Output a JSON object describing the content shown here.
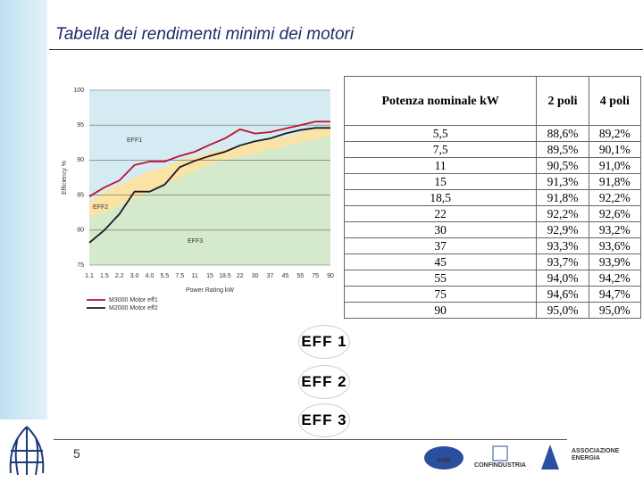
{
  "header": {
    "title": "Tabella dei rendimenti minimi dei motori"
  },
  "chart_data": {
    "type": "line",
    "categories": [
      "1.1",
      "1.5",
      "2.2",
      "3.0",
      "4.0",
      "5.5",
      "7.5",
      "11",
      "15",
      "18.5",
      "22",
      "30",
      "37",
      "45",
      "55",
      "75",
      "90"
    ],
    "ylabel": "Efficiency %",
    "xlabel": "Power Rating kW",
    "ylim": [
      75,
      100
    ],
    "yticks": [
      75,
      80,
      85,
      90,
      95,
      100
    ],
    "grid": true,
    "bands": [
      {
        "label": "EFF1",
        "color": "#d4ebf4"
      },
      {
        "label": "EFF2",
        "color": "#fbe3a6",
        "values": [
          84,
          85.5,
          86.5,
          87.5,
          88.5,
          89,
          90,
          90.5,
          91.2,
          91.6,
          92,
          92.6,
          93,
          93.3,
          94,
          94.5,
          95
        ]
      },
      {
        "label": "EFF3",
        "color": "#d4eacb",
        "values": [
          82,
          82.5,
          83.5,
          84.5,
          85.5,
          86.5,
          87.5,
          88.5,
          89.5,
          90,
          90.5,
          91,
          91.5,
          92,
          92.5,
          93,
          93.5
        ]
      }
    ],
    "series": [
      {
        "name": "M3000 Motor eff1",
        "color": "#c0102a",
        "values": [
          84.8,
          86.1,
          87.1,
          89.3,
          89.8,
          89.8,
          90.6,
          91.2,
          92.2,
          93.1,
          94.4,
          93.8,
          94.0,
          94.5,
          95.0,
          95.5,
          95.5
        ]
      },
      {
        "name": "M2000 Motor eff2",
        "color": "#1a1a2e",
        "values": [
          78.2,
          80.0,
          82.3,
          85.5,
          85.5,
          86.5,
          89.0,
          89.9,
          90.6,
          91.2,
          92.1,
          92.7,
          93.1,
          93.8,
          94.3,
          94.6,
          94.6
        ]
      }
    ]
  },
  "table": {
    "header": [
      "Potenza nominale kW",
      "2 poli",
      "4 poli"
    ],
    "rows": [
      [
        "5,5",
        "88,6%",
        "89,2%"
      ],
      [
        "7,5",
        "89,5%",
        "90,1%"
      ],
      [
        "11",
        "90,5%",
        "91,0%"
      ],
      [
        "15",
        "91,3%",
        "91,8%"
      ],
      [
        "18,5",
        "91,8%",
        "92,2%"
      ],
      [
        "22",
        "92,2%",
        "92,6%"
      ],
      [
        "30",
        "92,9%",
        "93,2%"
      ],
      [
        "37",
        "93,3%",
        "93,6%"
      ],
      [
        "45",
        "93,7%",
        "93,9%"
      ],
      [
        "55",
        "94,0%",
        "94,2%"
      ],
      [
        "75",
        "94,6%",
        "94,7%"
      ],
      [
        "90",
        "95,0%",
        "95,0%"
      ]
    ]
  },
  "badges": [
    "EFF 1",
    "EFF 2",
    "EFF 3"
  ],
  "footer": {
    "page": "5",
    "logos": [
      "ANIE",
      "CONFINDUSTRIA",
      "ASSOCIAZIONE",
      "ENERGIA"
    ]
  }
}
